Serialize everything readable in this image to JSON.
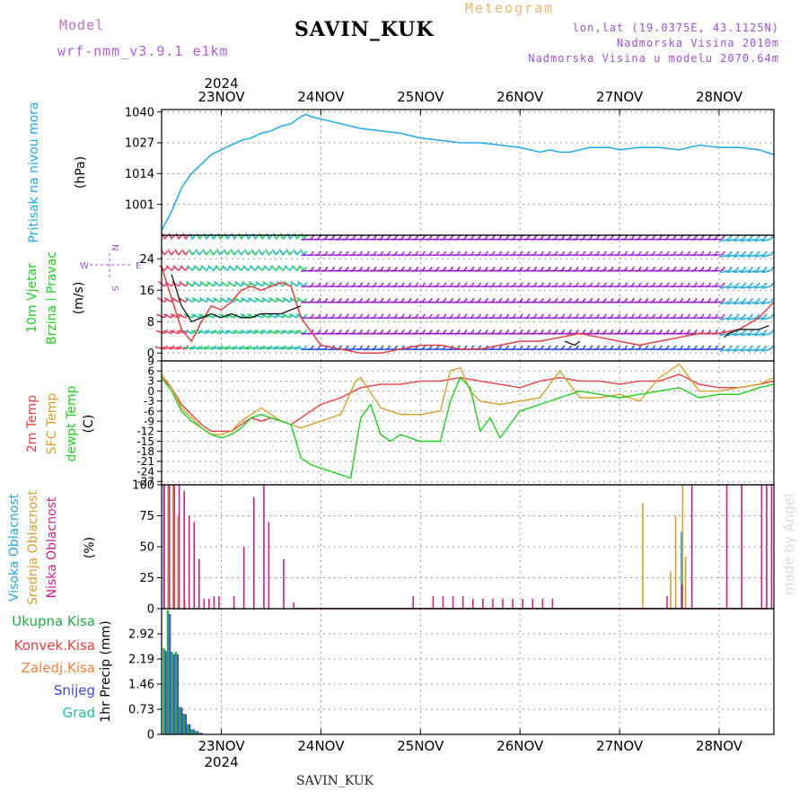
{
  "header": {
    "model_label": "Model",
    "model_name": "wrf-nmm_v3.9.1  e1km",
    "station": "SAVIN_KUK",
    "product": "Meteogram",
    "coords": "lon,lat (19.0375E, 43.1125N)",
    "elevation": "Nadmorska Visina 2010m",
    "model_elevation": "Nadmorska Visina u modelu 2070.64m"
  },
  "footer": {
    "station": "SAVIN_KUK",
    "credit": "made by Angel"
  },
  "time_axis": {
    "year": "2024",
    "days": [
      "23NOV",
      "24NOV",
      "25NOV",
      "26NOV",
      "27NOV",
      "28NOV"
    ],
    "day_index": [
      0,
      1,
      2,
      3,
      4,
      5
    ],
    "range": [
      -0.6,
      5.55
    ]
  },
  "colors": {
    "pressure": "#1fa8e8",
    "wind_speed": "#e04040",
    "wind_gust": "#000000",
    "temp_2m": "#e84040",
    "temp_sfc": "#d4a030",
    "dewpoint": "#22cc22",
    "cloud_high": "#2aa8d8",
    "cloud_mid": "#d4a030",
    "cloud_low": "#cc2288",
    "precip_total": "#22aa44",
    "precip_snow": "#4444dd"
  },
  "chart_data": [
    {
      "type": "line",
      "title": "Pritisak na nivou mora",
      "ylabel": "(hPa)",
      "ylim": [
        988,
        1041
      ],
      "yticks": [
        "1001",
        "1014",
        "1027",
        "1040"
      ],
      "grid": true,
      "series": [
        {
          "name": "Pritisak na nivou mora",
          "x": [
            -0.6,
            -0.55,
            -0.5,
            -0.45,
            -0.4,
            -0.3,
            -0.2,
            -0.1,
            0.0,
            0.1,
            0.2,
            0.3,
            0.4,
            0.5,
            0.6,
            0.7,
            0.8,
            0.85,
            0.9,
            1.0,
            1.1,
            1.2,
            1.4,
            1.6,
            1.8,
            2.0,
            2.2,
            2.4,
            2.6,
            2.8,
            3.0,
            3.1,
            3.2,
            3.3,
            3.4,
            3.5,
            3.6,
            3.7,
            3.8,
            3.9,
            4.0,
            4.2,
            4.4,
            4.6,
            4.8,
            5.0,
            5.2,
            5.4,
            5.55
          ],
          "y": [
            990,
            994,
            998,
            1003,
            1008,
            1014,
            1018,
            1022,
            1024,
            1026,
            1028,
            1029,
            1031,
            1032,
            1034,
            1035,
            1038,
            1039,
            1038,
            1037,
            1036,
            1035,
            1033,
            1032,
            1031,
            1029,
            1028,
            1027,
            1027,
            1026,
            1025,
            1024,
            1023,
            1024,
            1023,
            1023,
            1024,
            1025,
            1025,
            1025,
            1024,
            1025,
            1025,
            1024,
            1026,
            1025,
            1025,
            1024,
            1022
          ]
        }
      ]
    },
    {
      "type": "line",
      "title": "10m Vjetar Brzina i Pravac",
      "ylabel": "(m/s)",
      "ylim": [
        -2,
        30
      ],
      "yticks": [
        "0",
        "8",
        "16",
        "24"
      ],
      "grid": true,
      "direction_legend": {
        "n": "N",
        "w": "W",
        "e": "E",
        "s": "S"
      },
      "series": [
        {
          "name": "speed",
          "x": [
            -0.6,
            -0.5,
            -0.4,
            -0.3,
            -0.2,
            -0.1,
            0.0,
            0.1,
            0.2,
            0.3,
            0.4,
            0.5,
            0.6,
            0.7,
            0.8,
            1.0,
            1.2,
            1.4,
            1.6,
            1.8,
            2.0,
            2.2,
            2.4,
            2.6,
            2.8,
            3.0,
            3.2,
            3.4,
            3.6,
            3.8,
            4.0,
            4.2,
            4.4,
            4.6,
            4.8,
            5.0,
            5.2,
            5.4,
            5.55
          ],
          "y": [
            22,
            14,
            6,
            3,
            8,
            12,
            11,
            13,
            16,
            17,
            16,
            17,
            18,
            17,
            9,
            2,
            1,
            0,
            0,
            1,
            2,
            2,
            1,
            1,
            2,
            3,
            3,
            4,
            5,
            4,
            3,
            2,
            3,
            4,
            5,
            5,
            6,
            9,
            13
          ]
        },
        {
          "name": "gust",
          "x": [
            -0.5,
            -0.4,
            -0.3,
            -0.2,
            -0.1,
            0.0,
            0.1,
            0.2,
            0.3,
            0.4,
            0.5,
            0.6,
            0.7,
            0.8,
            3.45,
            3.55,
            3.6,
            5.05,
            5.1,
            5.2,
            5.3,
            5.4,
            5.5
          ],
          "y": [
            20,
            12,
            8,
            9,
            10,
            9,
            10,
            9,
            9,
            10,
            10,
            10,
            11,
            12,
            3,
            2,
            3,
            4,
            5,
            6,
            6,
            6,
            7
          ]
        }
      ]
    },
    {
      "type": "line",
      "title": "2m Temp",
      "ylabel": "(C)",
      "ylim": [
        -28,
        9
      ],
      "yticks": [
        "-27",
        "-24",
        "-21",
        "-18",
        "-15",
        "-12",
        "-9",
        "-6",
        "-3",
        "0",
        "3",
        "6",
        "9"
      ],
      "grid": true,
      "series": [
        {
          "name": "2m Temp",
          "x": [
            -0.6,
            -0.5,
            -0.4,
            -0.3,
            -0.2,
            -0.1,
            0.0,
            0.1,
            0.2,
            0.3,
            0.4,
            0.5,
            0.6,
            0.7,
            0.8,
            0.9,
            1.0,
            1.2,
            1.4,
            1.6,
            1.8,
            2.0,
            2.2,
            2.4,
            2.6,
            2.8,
            3.0,
            3.2,
            3.4,
            3.6,
            3.8,
            4.0,
            4.2,
            4.4,
            4.6,
            4.8,
            5.0,
            5.2,
            5.4,
            5.55
          ],
          "y": [
            4,
            1,
            -4,
            -7,
            -10,
            -12,
            -12,
            -12,
            -10,
            -8,
            -9,
            -8,
            -9,
            -10,
            -8,
            -6,
            -4,
            -2,
            1,
            2,
            2,
            3,
            3,
            4,
            3,
            2,
            1,
            3,
            4,
            3,
            3,
            2,
            3,
            3,
            5,
            2,
            1,
            1,
            2,
            3
          ]
        },
        {
          "name": "SFC Temp",
          "x": [
            -0.6,
            -0.5,
            -0.4,
            -0.3,
            -0.2,
            -0.1,
            0.0,
            0.1,
            0.2,
            0.3,
            0.4,
            0.5,
            0.6,
            0.7,
            0.8,
            0.9,
            1.0,
            1.2,
            1.35,
            1.4,
            1.6,
            1.8,
            2.0,
            2.2,
            2.3,
            2.4,
            2.5,
            2.6,
            2.8,
            3.0,
            3.2,
            3.4,
            3.6,
            3.8,
            4.0,
            4.2,
            4.4,
            4.6,
            4.8,
            5.0,
            5.2,
            5.4,
            5.55
          ],
          "y": [
            5,
            1,
            -5,
            -8,
            -11,
            -13,
            -13,
            -12,
            -9,
            -7,
            -5,
            -7,
            -9,
            -10,
            -11,
            -10,
            -9,
            -7,
            3,
            4,
            -5,
            -7,
            -7,
            -6,
            6,
            7,
            0,
            -3,
            -4,
            -3,
            -2,
            6,
            -2,
            -2,
            -1,
            -3,
            4,
            8,
            0,
            0,
            1,
            2,
            4
          ]
        },
        {
          "name": "dewpt Temp",
          "x": [
            -0.6,
            -0.5,
            -0.4,
            -0.3,
            -0.2,
            -0.1,
            0.0,
            0.1,
            0.2,
            0.3,
            0.4,
            0.5,
            0.6,
            0.7,
            0.8,
            0.9,
            1.0,
            1.1,
            1.2,
            1.3,
            1.4,
            1.5,
            1.6,
            1.7,
            1.8,
            2.0,
            2.2,
            2.3,
            2.4,
            2.5,
            2.6,
            2.7,
            2.8,
            3.0,
            3.2,
            3.4,
            3.6,
            3.8,
            4.0,
            4.2,
            4.4,
            4.6,
            4.8,
            5.0,
            5.2,
            5.4,
            5.55
          ],
          "y": [
            4,
            0,
            -6,
            -9,
            -11,
            -13,
            -14,
            -13,
            -11,
            -8,
            -7,
            -8,
            -9,
            -10,
            -20,
            -22,
            -23,
            -24,
            -25,
            -26,
            -8,
            -4,
            -13,
            -15,
            -13,
            -15,
            -15,
            -3,
            4,
            1,
            -12,
            -8,
            -14,
            -6,
            -4,
            -2,
            0,
            -1,
            -2,
            -1,
            0,
            1,
            -2,
            -1,
            -1,
            1,
            2
          ]
        }
      ]
    },
    {
      "type": "bar",
      "title": "Visoka Oblacnost / Srednja Oblacnost / Niska Oblacnost",
      "ylabel": "(%)",
      "ylim": [
        0,
        100
      ],
      "yticks": [
        "0",
        "25",
        "50",
        "75",
        "100"
      ],
      "grid": true,
      "series": [
        {
          "name": "Visoka Oblacnost",
          "x": [
            -0.58,
            -0.52,
            4.62
          ],
          "y": [
            100,
            100,
            62
          ]
        },
        {
          "name": "Srednja Oblacnost",
          "x": [
            -0.55,
            -0.5,
            -0.45,
            -0.38,
            4.22,
            4.5,
            4.55,
            4.62,
            4.65
          ],
          "y": [
            100,
            100,
            75,
            7,
            85,
            30,
            75,
            100,
            42
          ]
        },
        {
          "name": "Niska Oblacnost",
          "x": [
            -0.6,
            -0.55,
            -0.5,
            -0.45,
            -0.4,
            -0.35,
            -0.3,
            -0.25,
            -0.2,
            -0.15,
            -0.1,
            -0.05,
            0.1,
            0.2,
            0.3,
            0.4,
            0.45,
            0.6,
            0.7,
            1.9,
            2.1,
            2.2,
            2.3,
            2.4,
            2.5,
            2.6,
            2.7,
            2.8,
            2.9,
            3.0,
            3.1,
            3.2,
            3.3,
            4.45,
            4.6,
            4.7,
            5.05,
            5.2,
            5.4,
            5.45,
            5.5
          ],
          "y": [
            100,
            100,
            100,
            100,
            95,
            75,
            70,
            40,
            8,
            8,
            10,
            10,
            10,
            50,
            90,
            100,
            70,
            40,
            5,
            10,
            10,
            10,
            10,
            10,
            8,
            8,
            8,
            8,
            8,
            8,
            8,
            8,
            8,
            10,
            20,
            100,
            100,
            100,
            100,
            100,
            100
          ]
        }
      ]
    },
    {
      "type": "bar",
      "title": "1hr Precip",
      "ylabel": "1hr Precip (mm)",
      "ylim": [
        0,
        3.65
      ],
      "yticks": [
        "0",
        "0.73",
        "1.46",
        "2.19",
        "2.92"
      ],
      "grid": true,
      "legend": [
        "Ukupna Kisa",
        "Konvek.Kisa",
        "Zaledj.Kisa",
        "Snijeg",
        "Grad"
      ],
      "series": [
        {
          "name": "Snijeg",
          "x": [
            -0.57,
            -0.53,
            -0.49,
            -0.45,
            -0.41,
            -0.37,
            -0.33,
            -0.29,
            -0.25,
            -0.21
          ],
          "y": [
            2.5,
            3.6,
            2.4,
            2.4,
            0.8,
            0.6,
            0.3,
            0.15,
            0.1,
            0.05
          ]
        }
      ]
    }
  ]
}
